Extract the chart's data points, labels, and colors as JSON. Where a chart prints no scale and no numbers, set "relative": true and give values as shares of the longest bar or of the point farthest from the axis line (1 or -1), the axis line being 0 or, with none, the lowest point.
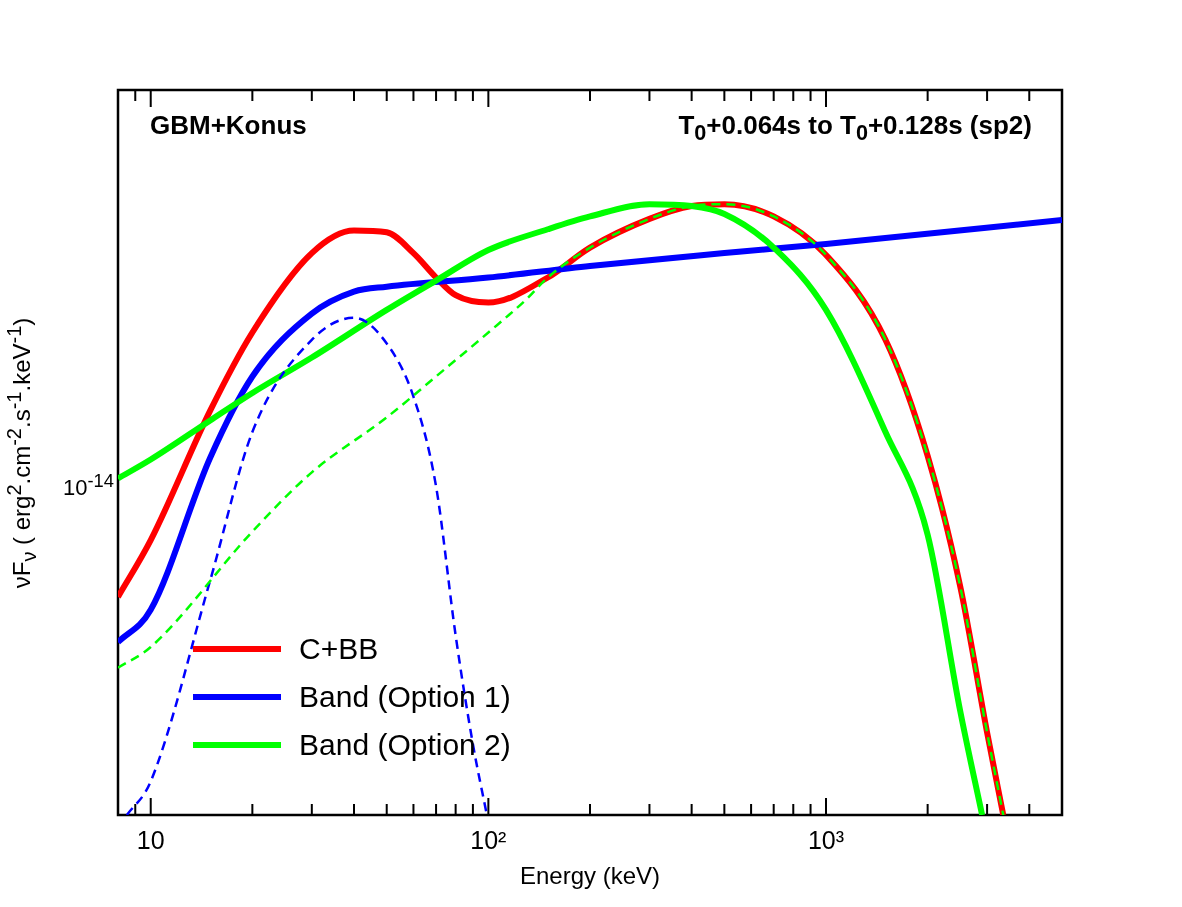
{
  "chart_data": {
    "type": "line",
    "relative": true,
    "xlabel": "Energy (keV)",
    "ylabel": "νF$_{ν}$ ( erg$^{2}$.cm$^{-2}$.s$^{-1}$.keV$^{-1}$)",
    "annotations": [
      "GBM+Konus",
      "T$_{0}$+0.064s to T$_{0}$+0.128s (sp2)",
      "10$^{-14}$"
    ],
    "log": "x",
    "legend": "bottom left",
    "xlim": [
      8,
      5000
    ],
    "xticks": [
      {
        "value": 8,
        "label": null
      },
      {
        "value": 9,
        "label": null
      },
      10,
      {
        "value": 20,
        "label": null
      },
      {
        "value": 30,
        "label": null
      },
      {
        "value": 40,
        "label": null
      },
      {
        "value": 50,
        "label": null
      },
      {
        "value": 60,
        "label": null
      },
      {
        "value": 70,
        "label": null
      },
      {
        "value": 80,
        "label": null
      },
      {
        "value": 90,
        "label": null
      },
      {
        "value": 100,
        "label": "10²"
      },
      {
        "value": 200,
        "label": null
      },
      {
        "value": 300,
        "label": null
      },
      {
        "value": 400,
        "label": null
      },
      {
        "value": 500,
        "label": null
      },
      {
        "value": 600,
        "label": null
      },
      {
        "value": 700,
        "label": null
      },
      {
        "value": 800,
        "label": null
      },
      {
        "value": 900,
        "label": null
      },
      {
        "value": 1000,
        "label": "10³"
      },
      {
        "value": 2000,
        "label": null
      },
      {
        "value": 3000,
        "label": null
      },
      {
        "value": 4000,
        "label": null
      },
      {
        "value": 5000,
        "label": null
      }
    ],
    "series": [
      {
        "name": "C+BB",
        "color": "#ff0000",
        "line_style": "solid",
        "x": [
          8,
          10,
          15,
          20,
          30,
          40,
          50,
          60,
          70,
          80,
          100,
          150,
          200,
          300,
          400,
          500,
          700,
          1000,
          1500,
          2000,
          2500,
          3000,
          3350
        ],
        "values": [
          0.357,
          0.45,
          0.662,
          0.79,
          0.92,
          0.957,
          0.954,
          0.92,
          0.88,
          0.851,
          0.839,
          0.88,
          0.929,
          0.976,
          0.997,
          1,
          0.98,
          0.917,
          0.778,
          0.588,
          0.373,
          0.135,
          0
        ]
      },
      {
        "name": "Band (Option 1)",
        "color": "#0000ff",
        "line_style": "solid",
        "x": [
          8,
          10,
          15,
          20,
          30,
          40,
          50,
          100,
          200,
          500,
          1000,
          5000
        ],
        "values": [
          0.283,
          0.336,
          0.585,
          0.718,
          0.821,
          0.857,
          0.865,
          0.88,
          0.899,
          0.92,
          0.935,
          0.974
        ]
      },
      {
        "name": "Band (Option 2)",
        "color": "#00ff00",
        "line_style": "solid",
        "x": [
          8,
          10,
          15,
          20,
          30,
          50,
          70,
          100,
          150,
          200,
          300,
          400,
          500,
          700,
          1000,
          1500,
          2000,
          2500,
          2900
        ],
        "values": [
          0.551,
          0.582,
          0.646,
          0.691,
          0.749,
          0.827,
          0.875,
          0.925,
          0.959,
          0.98,
          1,
          0.997,
          0.984,
          0.929,
          0.827,
          0.627,
          0.459,
          0.169,
          0
        ]
      },
      {
        "color": "#0000ff",
        "line_style": "dashed",
        "x": [
          8.5,
          10,
          15,
          20,
          30,
          40,
          50,
          60,
          70,
          80,
          90,
          99
        ],
        "values": [
          0,
          0.055,
          0.384,
          0.627,
          0.778,
          0.814,
          0.772,
          0.685,
          0.538,
          0.294,
          0.116,
          0
        ]
      },
      {
        "color": "#00ff00",
        "line_style": "dashed",
        "x": [
          8,
          10,
          20,
          30,
          50,
          70,
          100,
          130,
          150,
          200,
          300,
          400,
          500,
          700,
          1000,
          1500,
          2000,
          2500,
          3000,
          3350
        ],
        "values": [
          0.241,
          0.275,
          0.464,
          0.561,
          0.651,
          0.718,
          0.79,
          0.845,
          0.88,
          0.929,
          0.976,
          0.997,
          1,
          0.98,
          0.917,
          0.778,
          0.588,
          0.373,
          0.135,
          0
        ]
      }
    ]
  }
}
